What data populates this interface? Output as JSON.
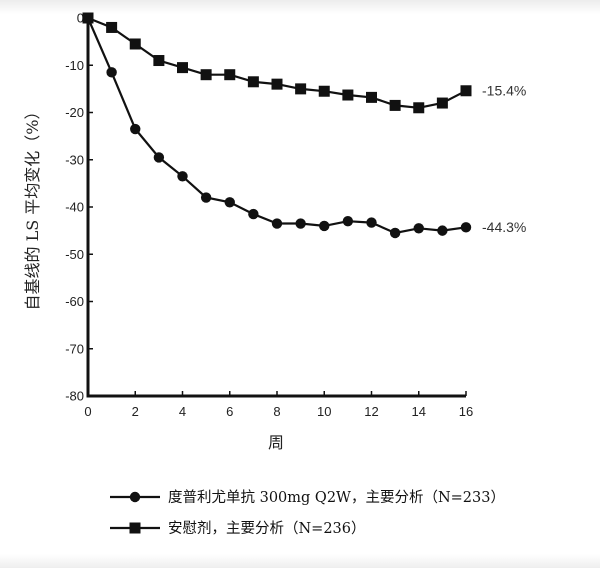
{
  "chart_data": {
    "type": "line",
    "xlabel": "周",
    "ylabel": "自基线的 LS 平均变化（%）",
    "xlim": [
      0,
      16
    ],
    "ylim": [
      -80,
      0
    ],
    "x_ticks": [
      0,
      2,
      4,
      6,
      8,
      10,
      12,
      14,
      16
    ],
    "y_ticks": [
      0,
      -10,
      -20,
      -30,
      -40,
      -50,
      -60,
      -70,
      -80
    ],
    "grid": false,
    "legend_position": "bottom",
    "x": [
      0,
      1,
      2,
      3,
      4,
      5,
      6,
      7,
      8,
      9,
      10,
      11,
      12,
      13,
      14,
      15,
      16
    ],
    "series": [
      {
        "name": "度普利尤单抗 300mg Q2W，主要分析（N=233）",
        "marker": "circle",
        "color": "#111111",
        "values": [
          0,
          -11.5,
          -23.5,
          -29.5,
          -33.5,
          -38,
          -39,
          -41.5,
          -43.5,
          -43.5,
          -44,
          -43,
          -43.3,
          -45.5,
          -44.5,
          -45,
          -44.3
        ],
        "end_label": "-44.3%"
      },
      {
        "name": "安慰剂，主要分析（N=236）",
        "marker": "square",
        "color": "#111111",
        "values": [
          0,
          -2,
          -5.5,
          -9,
          -10.5,
          -12,
          -12,
          -13.5,
          -14,
          -15,
          -15.5,
          -16.3,
          -16.8,
          -18.5,
          -19,
          -18,
          -15.4
        ],
        "end_label": "-15.4%"
      }
    ]
  }
}
